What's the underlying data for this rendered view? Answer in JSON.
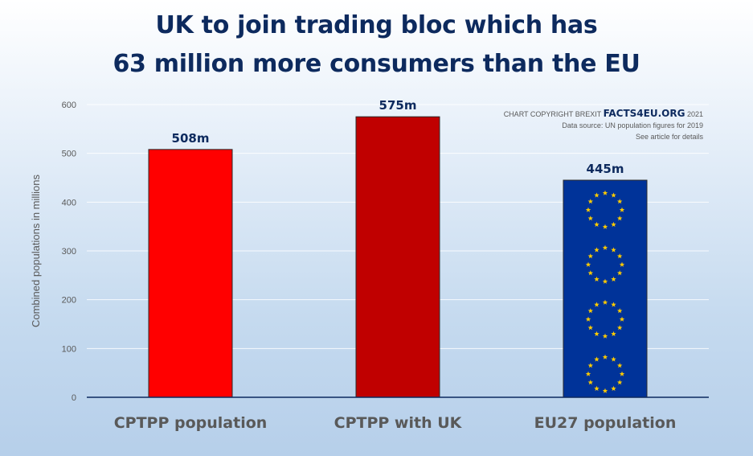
{
  "title_lines": [
    "UK to join trading bloc which has",
    "63 million more consumers than the EU"
  ],
  "credit": {
    "prefix": "CHART COPYRIGHT BREXIT",
    "brand": "FACTS4EU.ORG",
    "year": "2021",
    "source": "Data source: UN population figures for 2019",
    "note": "See article for details"
  },
  "chart_data": {
    "type": "bar",
    "categories": [
      "CPTPP population",
      "CPTPP with UK",
      "EU27 population"
    ],
    "values": [
      508,
      575,
      445
    ],
    "data_labels": [
      "508m",
      "575m",
      "445m"
    ],
    "ylabel": "Combined populations in millions",
    "xlabel": "",
    "ylim": [
      0,
      600
    ],
    "yticks": [
      0,
      100,
      200,
      300,
      400,
      500,
      600
    ],
    "grid": true,
    "bar_colors": [
      "#ff0000",
      "#c00000",
      "#003399"
    ],
    "eu_star_color": "#ffcc00",
    "legend": "none"
  }
}
